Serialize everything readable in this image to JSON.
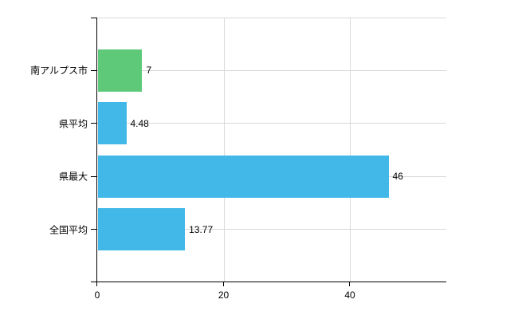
{
  "chart_data": {
    "type": "bar",
    "orientation": "horizontal",
    "title": "",
    "xlabel": "",
    "ylabel": "",
    "categories": [
      "南アルプス市",
      "県平均",
      "県最大",
      "全国平均"
    ],
    "values": [
      7,
      4.48,
      46,
      13.77
    ],
    "value_labels": [
      "7",
      "4.48",
      "46",
      "13.77"
    ],
    "x_ticks": [
      0,
      20,
      40
    ],
    "x_tick_labels": [
      "0",
      "20",
      "40"
    ],
    "xlim": [
      0,
      55.3
    ],
    "grid": true,
    "legend": false,
    "colors": {
      "bar_default": "#41b8e8",
      "bar_highlight": "#5fc97a",
      "highlight_index": 0,
      "grid": "#d9d9d9",
      "axis": "#000000",
      "text": "#000000",
      "background": "#ffffff"
    }
  }
}
